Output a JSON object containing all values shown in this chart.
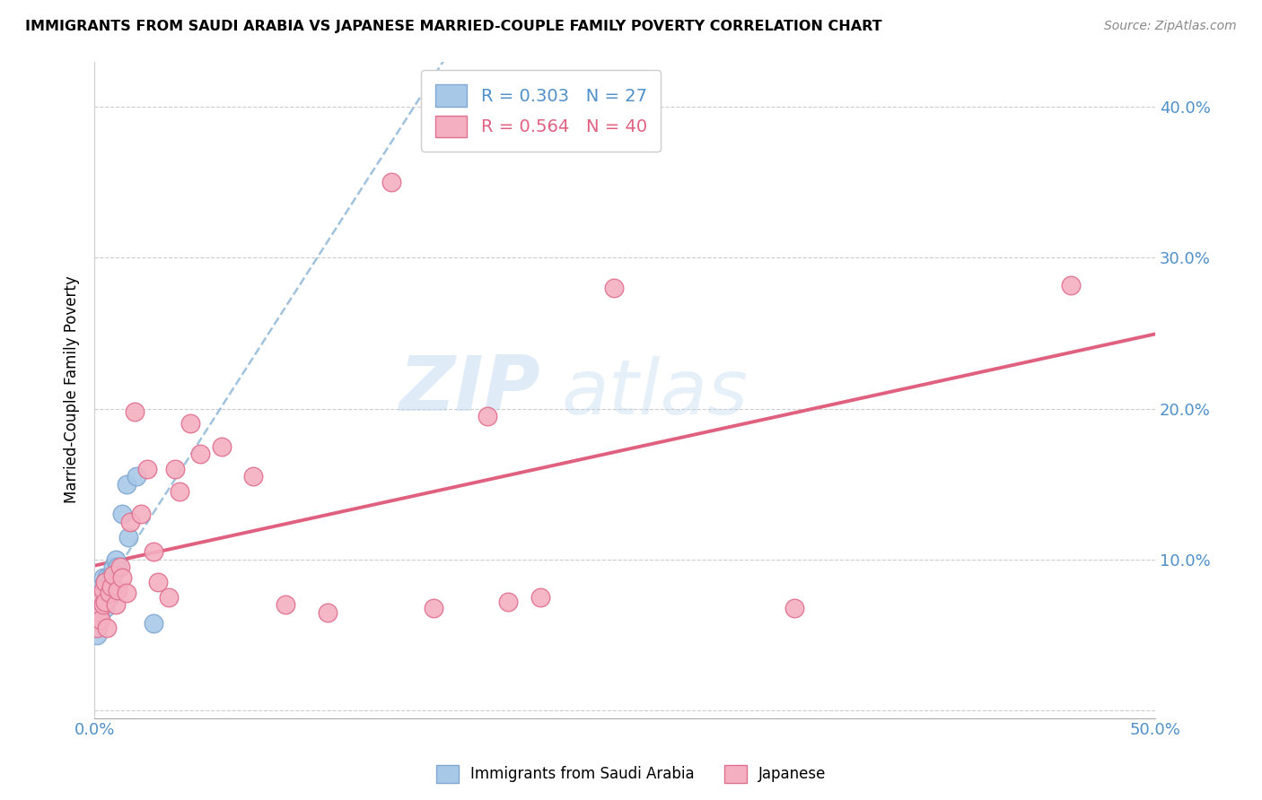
{
  "title": "IMMIGRANTS FROM SAUDI ARABIA VS JAPANESE MARRIED-COUPLE FAMILY POVERTY CORRELATION CHART",
  "source": "Source: ZipAtlas.com",
  "ylabel": "Married-Couple Family Poverty",
  "xlim": [
    0.0,
    0.5
  ],
  "ylim": [
    -0.005,
    0.43
  ],
  "x_ticks": [
    0.0,
    0.1,
    0.2,
    0.3,
    0.4,
    0.5
  ],
  "y_ticks": [
    0.0,
    0.1,
    0.2,
    0.3,
    0.4
  ],
  "x_tick_labels": [
    "0.0%",
    "",
    "",
    "",
    "",
    "50.0%"
  ],
  "y_tick_labels_right": [
    "",
    "10.0%",
    "20.0%",
    "30.0%",
    "40.0%"
  ],
  "legend1_R": "0.303",
  "legend1_N": "27",
  "legend2_R": "0.564",
  "legend2_N": "40",
  "color_blue": "#a8c8e8",
  "color_pink": "#f4b0c0",
  "color_blue_edge": "#80a8d0",
  "color_pink_edge": "#e07090",
  "color_blue_line": "#90b8d8",
  "color_pink_line": "#e06080",
  "watermark_zip": "ZIP",
  "watermark_atlas": "atlas",
  "blue_scatter_x": [
    0.001,
    0.001,
    0.002,
    0.002,
    0.002,
    0.003,
    0.003,
    0.003,
    0.004,
    0.004,
    0.004,
    0.005,
    0.005,
    0.005,
    0.006,
    0.006,
    0.007,
    0.007,
    0.008,
    0.009,
    0.01,
    0.011,
    0.013,
    0.015,
    0.016,
    0.02,
    0.028
  ],
  "blue_scatter_y": [
    0.05,
    0.06,
    0.065,
    0.07,
    0.075,
    0.068,
    0.075,
    0.082,
    0.072,
    0.08,
    0.088,
    0.068,
    0.075,
    0.085,
    0.08,
    0.088,
    0.075,
    0.085,
    0.09,
    0.095,
    0.1,
    0.095,
    0.13,
    0.15,
    0.115,
    0.155,
    0.058
  ],
  "pink_scatter_x": [
    0.001,
    0.002,
    0.003,
    0.003,
    0.004,
    0.004,
    0.005,
    0.005,
    0.006,
    0.007,
    0.008,
    0.009,
    0.01,
    0.011,
    0.012,
    0.013,
    0.015,
    0.017,
    0.019,
    0.022,
    0.025,
    0.028,
    0.03,
    0.035,
    0.038,
    0.04,
    0.045,
    0.05,
    0.06,
    0.075,
    0.09,
    0.11,
    0.14,
    0.16,
    0.185,
    0.195,
    0.21,
    0.245,
    0.33,
    0.46
  ],
  "pink_scatter_y": [
    0.055,
    0.065,
    0.06,
    0.075,
    0.07,
    0.08,
    0.072,
    0.085,
    0.055,
    0.078,
    0.082,
    0.09,
    0.07,
    0.08,
    0.095,
    0.088,
    0.078,
    0.125,
    0.198,
    0.13,
    0.16,
    0.105,
    0.085,
    0.075,
    0.16,
    0.145,
    0.19,
    0.17,
    0.175,
    0.155,
    0.07,
    0.065,
    0.35,
    0.068,
    0.195,
    0.072,
    0.075,
    0.28,
    0.068,
    0.282
  ]
}
